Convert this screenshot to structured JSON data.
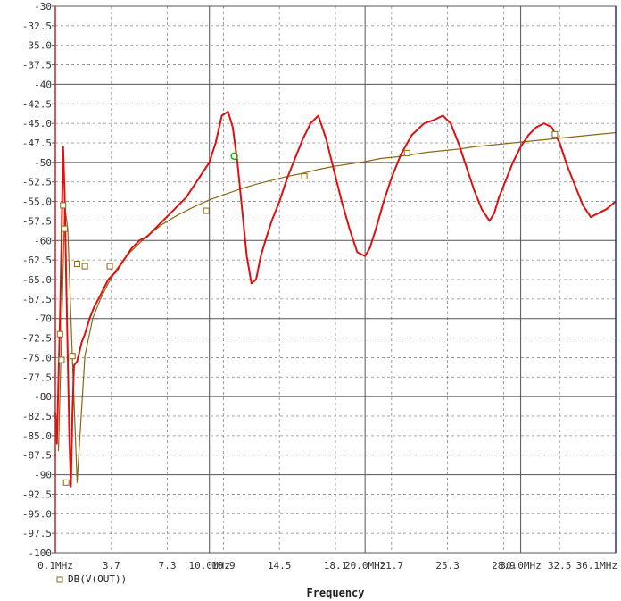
{
  "chart_data": {
    "type": "line",
    "title": "",
    "xlabel": "Frequency",
    "ylabel": "",
    "ylim": [
      -100,
      -30
    ],
    "xlim": [
      0.1,
      36.1
    ],
    "y_ticks": [
      "-30",
      "-32.5",
      "-35.0",
      "-37.5",
      "-40",
      "-42.5",
      "-45.0",
      "-47.5",
      "-50",
      "-52.5",
      "-55.0",
      "-57.5",
      "-60",
      "-62.5",
      "-65.0",
      "-67.5",
      "-70",
      "-72.5",
      "-75.0",
      "-77.5",
      "-80",
      "-82.5",
      "-85.0",
      "-87.5",
      "-90",
      "-92.5",
      "-95.0",
      "-97.5",
      "-100"
    ],
    "x_ticks": [
      {
        "value": 0.1,
        "label": "0.1MHz",
        "major": true
      },
      {
        "value": 3.7,
        "label": "3.7",
        "major": false
      },
      {
        "value": 7.3,
        "label": "7.3",
        "major": false
      },
      {
        "value": 10.0,
        "label": "10.0MHz",
        "major": true
      },
      {
        "value": 10.9,
        "label": "10.9",
        "major": false
      },
      {
        "value": 14.5,
        "label": "14.5",
        "major": false
      },
      {
        "value": 18.1,
        "label": "18.1",
        "major": false
      },
      {
        "value": 20.0,
        "label": "20.0MHz",
        "major": true
      },
      {
        "value": 21.7,
        "label": "21.7",
        "major": false
      },
      {
        "value": 25.3,
        "label": "25.3",
        "major": false
      },
      {
        "value": 28.9,
        "label": "28.9",
        "major": false
      },
      {
        "value": 30.0,
        "label": "30.0MHz",
        "major": true
      },
      {
        "value": 32.5,
        "label": "32.5",
        "major": false
      },
      {
        "value": 36.1,
        "label": "36.1MHz",
        "major": true
      }
    ],
    "grid": true,
    "legend_position": "bottom-left",
    "series": [
      {
        "name": "DB(V(OUT))",
        "color": "#8b6914",
        "marker": "square",
        "x": [
          0.3,
          0.5,
          0.7,
          0.9,
          1.2,
          1.5,
          2.0,
          2.5,
          3.0,
          3.5,
          4.0,
          4.5,
          5.0,
          6.0,
          7.0,
          8.0,
          9.0,
          10.0,
          11.0,
          12.0,
          13.0,
          14.0,
          15.0,
          16.0,
          17.0,
          18.0,
          19.0,
          20.0,
          21.0,
          22.0,
          23.0,
          24.0,
          25.0,
          26.0,
          27.0,
          28.0,
          29.0,
          30.0,
          31.0,
          32.0,
          33.0,
          34.0,
          35.0,
          36.1
        ],
        "y": [
          -87.0,
          -72.0,
          -55.5,
          -58.5,
          -75.3,
          -91.0,
          -74.8,
          -70.0,
          -67.5,
          -65.5,
          -63.8,
          -62.4,
          -61.3,
          -59.4,
          -57.9,
          -56.7,
          -55.7,
          -54.8,
          -54.1,
          -53.4,
          -52.8,
          -52.3,
          -51.8,
          -51.4,
          -50.9,
          -50.5,
          -50.2,
          -49.9,
          -49.5,
          -49.3,
          -49.0,
          -48.7,
          -48.5,
          -48.3,
          -48.0,
          -47.8,
          -47.6,
          -47.4,
          -47.2,
          -47.0,
          -46.8,
          -46.6,
          -46.4,
          -46.2
        ],
        "markers_x": [
          0.4,
          0.5,
          0.6,
          0.7,
          0.8,
          1.2,
          1.5,
          2.0,
          3.6,
          9.8,
          16.1,
          22.7,
          32.2
        ],
        "markers_y": [
          -72.0,
          -75.3,
          -55.5,
          -58.5,
          -91.0,
          -74.8,
          -63.0,
          -63.3,
          -63.3,
          -56.2,
          -51.8,
          -48.8,
          -46.4
        ]
      },
      {
        "name": "",
        "color": "#dd1111",
        "marker": "none",
        "x": [
          0.1,
          0.2,
          0.3,
          0.4,
          0.5,
          0.6,
          0.7,
          0.8,
          0.9,
          1.0,
          1.1,
          1.2,
          1.3,
          1.5,
          1.8,
          2.0,
          2.3,
          2.6,
          3.0,
          3.5,
          4.0,
          4.5,
          5.0,
          5.5,
          6.0,
          6.5,
          7.0,
          7.5,
          8.0,
          8.5,
          9.0,
          9.5,
          10.0,
          10.4,
          10.8,
          11.2,
          11.5,
          11.8,
          12.1,
          12.4,
          12.7,
          13.0,
          13.3,
          13.6,
          14.0,
          14.5,
          15.0,
          15.5,
          16.0,
          16.5,
          17.0,
          17.5,
          18.0,
          18.5,
          19.0,
          19.5,
          20.0,
          20.3,
          20.7,
          21.2,
          21.7,
          22.3,
          23.0,
          23.8,
          24.5,
          25.0,
          25.5,
          26.0,
          26.5,
          27.0,
          27.5,
          28.0,
          28.3,
          28.6,
          29.0,
          29.5,
          30.0,
          30.5,
          31.0,
          31.5,
          32.0,
          32.5,
          33.0,
          33.5,
          34.0,
          34.5,
          35.0,
          35.5,
          36.1
        ],
        "y": [
          -82.0,
          -86.0,
          -78.0,
          -70.0,
          -60.0,
          -48.0,
          -54.0,
          -65.0,
          -75.0,
          -85.0,
          -91.5,
          -82.0,
          -76.0,
          -75.5,
          -73.0,
          -72.0,
          -70.0,
          -68.5,
          -67.0,
          -65.0,
          -64.0,
          -62.5,
          -61.0,
          -60.0,
          -59.5,
          -58.5,
          -57.5,
          -56.5,
          -55.5,
          -54.5,
          -53.0,
          -51.5,
          -50.0,
          -47.5,
          -44.0,
          -43.5,
          -45.5,
          -50.0,
          -56.0,
          -62.0,
          -65.5,
          -65.0,
          -62.0,
          -60.0,
          -57.5,
          -55.0,
          -52.0,
          -49.5,
          -47.0,
          -45.0,
          -44.0,
          -47.0,
          -51.0,
          -55.0,
          -58.5,
          -61.5,
          -62.0,
          -61.0,
          -58.5,
          -55.0,
          -52.0,
          -49.0,
          -46.5,
          -45.0,
          -44.5,
          -44.0,
          -45.0,
          -47.5,
          -50.5,
          -53.5,
          -56.0,
          -57.5,
          -56.5,
          -54.5,
          -52.5,
          -50.0,
          -48.0,
          -46.5,
          -45.5,
          -45.0,
          -45.5,
          -47.5,
          -50.5,
          -53.0,
          -55.5,
          -57.0,
          -56.5,
          -56.0,
          -55.0
        ]
      }
    ],
    "cursor_point": {
      "x": 11.6,
      "y": -49.2,
      "color": "#22aa22"
    }
  }
}
